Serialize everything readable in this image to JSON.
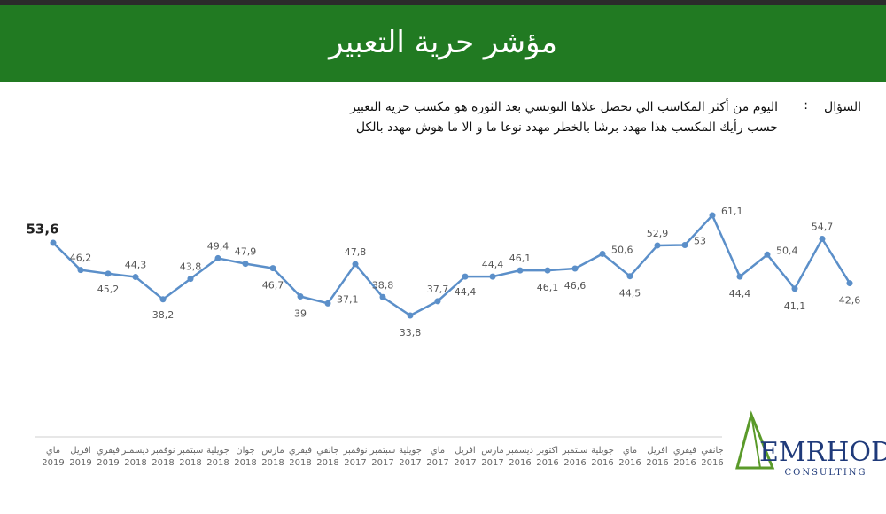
{
  "chart_data": {
    "type": "line",
    "title": "مؤشر حرية التعبير",
    "categories": [
      "ماي 2019",
      "افريل 2019",
      "فيفري 2019",
      "ديسمبر 2018",
      "نوفمبر 2018",
      "سبتمبر 2018",
      "جويلية 2018",
      "جوان 2018",
      "مارس 2018",
      "فيفري 2018",
      "جانفي 2018",
      "نوفمبر 2017",
      "سبتمبر 2017",
      "جويلية 2017",
      "ماي 2017",
      "افريل 2017",
      "مارس 2017",
      "ديسمبر 2016",
      "اكتوبر 2016",
      "سبتمبر 2016",
      "جويلية 2016",
      "ماي 2016",
      "افريل 2016",
      "فيفري 2016",
      "جانفي 2016",
      null,
      null,
      null,
      null,
      null
    ],
    "values": [
      53.6,
      46.2,
      45.2,
      44.3,
      38.2,
      43.8,
      49.4,
      47.9,
      46.7,
      39,
      37.1,
      47.8,
      38.8,
      33.8,
      37.7,
      44.4,
      44.4,
      46.1,
      46.1,
      46.6,
      50.6,
      44.5,
      52.9,
      53,
      61.1,
      44.4,
      50.4,
      41.1,
      54.7,
      42.6
    ],
    "value_labels": [
      "53,6",
      "46,2",
      "45,2",
      "44,3",
      "38,2",
      "43,8",
      "49,4",
      "47,9",
      "46,7",
      "39",
      "37,1",
      "47,8",
      "38,8",
      "33,8",
      "37,7",
      "44,4",
      "44,4",
      "46,1",
      "46,1",
      "46,6",
      "50,6",
      "44,5",
      "52,9",
      "53",
      "61,1",
      "44,4",
      "50,4",
      "41,1",
      "54,7",
      "42,6"
    ],
    "color": "#5b8fc9"
  },
  "question": {
    "label": "السؤال",
    "separator": ":",
    "lines": [
      "اليوم من أكثر المكاسب الي تحصل علاها التونسي بعد الثورة هو مكسب حرية التعبير",
      "حسب رأيك المكسب هذا مهدد برشا بالخطر مهدد نوعا ما و الا ما هوش مهدد بالكل"
    ]
  },
  "logo": {
    "name": "EMRHOD",
    "tagline": "CONSULTING"
  }
}
